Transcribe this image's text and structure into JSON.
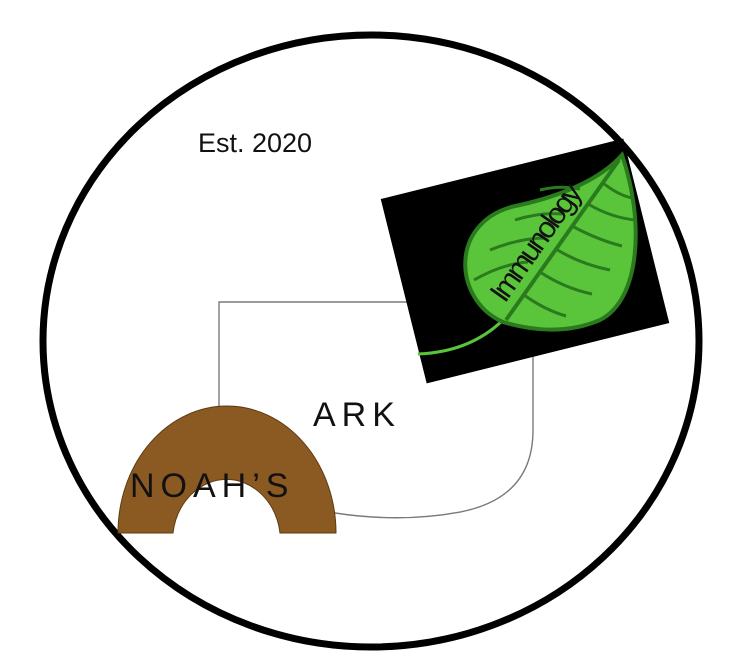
{
  "logo": {
    "established": "Est. 2020",
    "word_left": "NOAH’S",
    "word_right": "ARK",
    "badge_text": "Immunology",
    "icons": [
      "leaf-icon",
      "rainbow-arch-icon"
    ],
    "colors": {
      "ring": "#000000",
      "badge_background": "#000000",
      "leaf_fill": "#5ac53a",
      "leaf_outline": "#2a7a1e",
      "arch": "#8b5a22",
      "hull_outline": "#7a7a7a"
    }
  }
}
